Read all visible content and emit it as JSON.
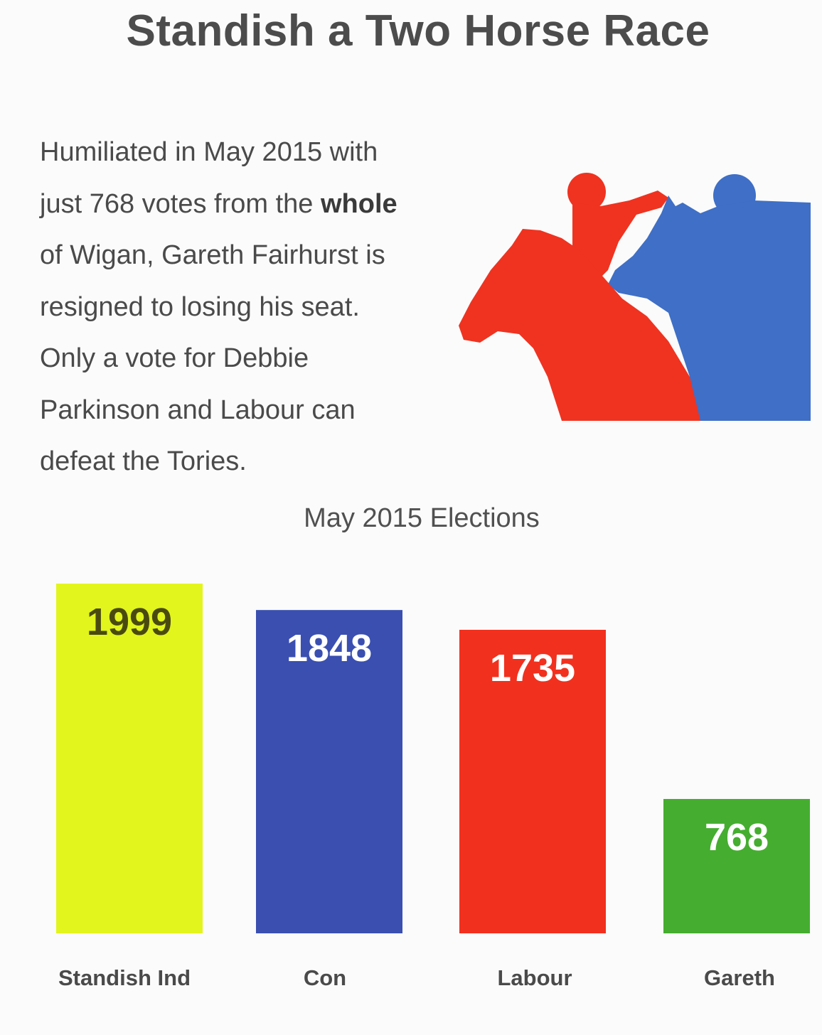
{
  "headline": "Standish a Two Horse Race",
  "body": {
    "line1": "Humiliated in May 2015 with",
    "line2_pre": "just 768 votes from the ",
    "line2_bold": "whole",
    "line3": "of Wigan, Gareth Fairhurst is",
    "line4": "resigned to losing his seat.",
    "line5": "Only a vote for Debbie",
    "line6": "Parkinson and Labour can",
    "line7": "defeat the Tories."
  },
  "illustration": {
    "icon": "two-racing-horses-icon",
    "colors": [
      "#ef3320",
      "#3f6fc6"
    ]
  },
  "chart_data": {
    "type": "bar",
    "title": "May 2015 Elections",
    "categories": [
      "Standish Ind",
      "Con",
      "Labour",
      "Gareth"
    ],
    "values": [
      1999,
      1848,
      1735,
      768
    ],
    "colors": [
      "#e2f51c",
      "#3a4fb0",
      "#f2301e",
      "#45ad2f"
    ],
    "label_colors": [
      "#4a4a10",
      "#ffffff",
      "#ffffff",
      "#ffffff"
    ],
    "ylim": [
      0,
      1999
    ],
    "grid": false,
    "legend": "none"
  }
}
